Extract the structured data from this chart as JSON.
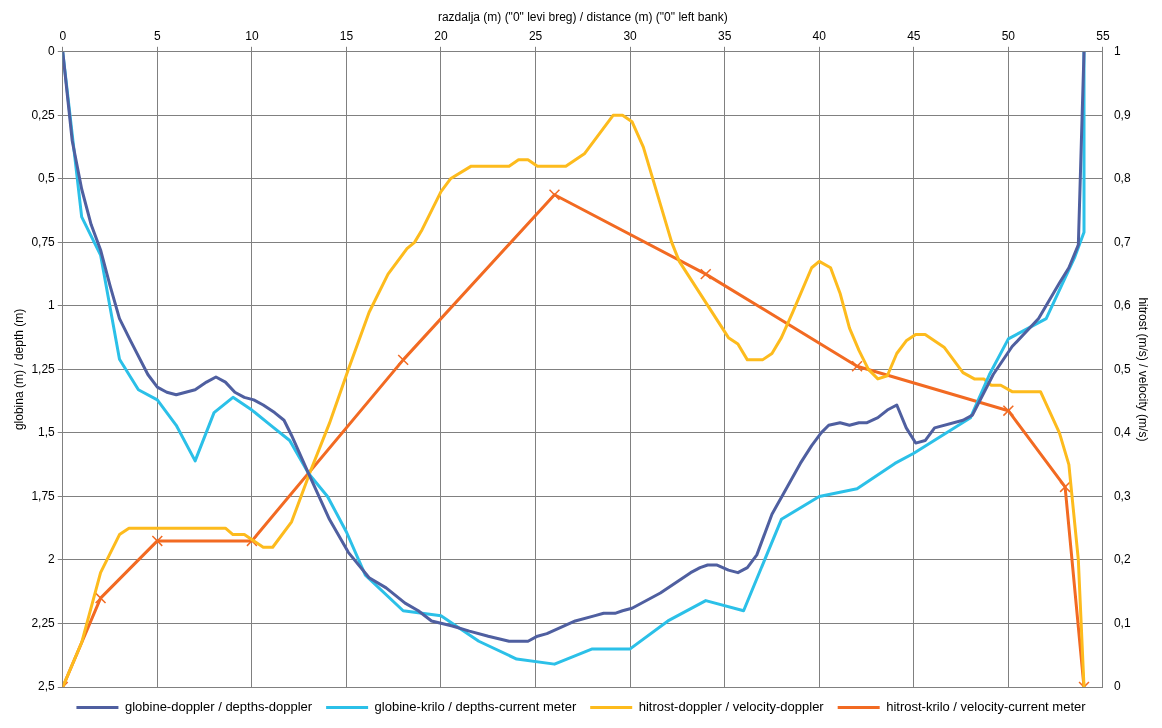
{
  "chart_data": {
    "type": "line",
    "xlabel": "razdalja (m) (\"0\" levi breg) / distance (m) (\"0\" left bank)",
    "ylabel": "globina (m) / depth (m)",
    "y2label": "hitrost (m/s) / velocity (m/s)",
    "xlim": [
      0,
      55
    ],
    "xticks": [
      0,
      5,
      10,
      15,
      20,
      25,
      30,
      35,
      40,
      45,
      50,
      55
    ],
    "ylim": [
      2.5,
      0
    ],
    "yticks": [
      0,
      {
        "value": 0.25,
        "label": "0,25"
      },
      {
        "value": 0.5,
        "label": "0,5"
      },
      {
        "value": 0.75,
        "label": "0,75"
      },
      1,
      {
        "value": 1.25,
        "label": "1,25"
      },
      {
        "value": 1.5,
        "label": "1,5"
      },
      {
        "value": 1.75,
        "label": "1,75"
      },
      2,
      {
        "value": 2.25,
        "label": "2,25"
      },
      {
        "value": 2.5,
        "label": "2,5"
      }
    ],
    "y2lim": [
      0,
      1
    ],
    "y2ticks": [
      0,
      {
        "value": 0.1,
        "label": "0,1"
      },
      {
        "value": 0.2,
        "label": "0,2"
      },
      {
        "value": 0.3,
        "label": "0,3"
      },
      {
        "value": 0.4,
        "label": "0,4"
      },
      {
        "value": 0.5,
        "label": "0,5"
      },
      {
        "value": 0.6,
        "label": "0,6"
      },
      {
        "value": 0.7,
        "label": "0,7"
      },
      {
        "value": 0.8,
        "label": "0,8"
      },
      {
        "value": 0.9,
        "label": "0,9"
      },
      1
    ],
    "grid": true,
    "legend": "bottom",
    "line_style": "solid",
    "series": [
      {
        "name": "globine-doppler / depths-doppler",
        "color": "#4f5fa0",
        "axis": "y",
        "marker": "none",
        "x": [
          0,
          0.5,
          1,
          1.5,
          2,
          2.5,
          3,
          3.6,
          4.5,
          5,
          5.5,
          6,
          7,
          7.6,
          8.1,
          8.6,
          9.1,
          9.6,
          10.1,
          10.6,
          11.2,
          11.7,
          12.1,
          13,
          14.1,
          15.1,
          16.2,
          17.1,
          18.1,
          18.8,
          19.5,
          20.6,
          21.5,
          22.5,
          23.6,
          24.6,
          25.1,
          25.6,
          27.1,
          28.1,
          28.6,
          29.2,
          29.6,
          30.1,
          31.6,
          33.2,
          33.7,
          34.1,
          34.6,
          35.2,
          35.7,
          36.2,
          36.7,
          37,
          37.5,
          38.1,
          39,
          39.6,
          40.1,
          40.5,
          41.1,
          41.6,
          42.1,
          42.5,
          43.1,
          43.6,
          44.1,
          44.6,
          45.1,
          45.6,
          46.1,
          47.6,
          48.1,
          49.2,
          50.2,
          51.6,
          52.7,
          53.2,
          53.7,
          54
        ],
        "values": [
          0,
          0.35,
          0.54,
          0.68,
          0.78,
          0.92,
          1.05,
          1.14,
          1.27,
          1.32,
          1.34,
          1.35,
          1.33,
          1.3,
          1.28,
          1.3,
          1.34,
          1.36,
          1.37,
          1.39,
          1.42,
          1.45,
          1.51,
          1.66,
          1.84,
          1.97,
          2.07,
          2.11,
          2.17,
          2.2,
          2.24,
          2.26,
          2.28,
          2.3,
          2.32,
          2.32,
          2.3,
          2.29,
          2.24,
          2.22,
          2.21,
          2.21,
          2.2,
          2.19,
          2.13,
          2.05,
          2.03,
          2.02,
          2.02,
          2.04,
          2.05,
          2.03,
          1.98,
          1.92,
          1.82,
          1.74,
          1.62,
          1.55,
          1.5,
          1.47,
          1.46,
          1.47,
          1.46,
          1.46,
          1.44,
          1.41,
          1.39,
          1.48,
          1.54,
          1.53,
          1.48,
          1.45,
          1.43,
          1.27,
          1.16,
          1.05,
          0.91,
          0.85,
          0.76,
          0
        ]
      },
      {
        "name": "globine-krilo / depths-current meter",
        "color": "#2bc0e8",
        "axis": "y",
        "marker": "none",
        "x": [
          0,
          1,
          2,
          3,
          4,
          5,
          6,
          7,
          8,
          9,
          10,
          11,
          12,
          13,
          14,
          15,
          16,
          18,
          19,
          20,
          22,
          24,
          26,
          28,
          30,
          32,
          34,
          36,
          38,
          40,
          42,
          44,
          45,
          48,
          49,
          50,
          52,
          53,
          53.5,
          54,
          54
        ],
        "values": [
          0,
          0.65,
          0.8,
          1.21,
          1.33,
          1.37,
          1.47,
          1.61,
          1.42,
          1.36,
          1.41,
          1.47,
          1.53,
          1.66,
          1.75,
          1.89,
          2.06,
          2.2,
          2.21,
          2.22,
          2.32,
          2.39,
          2.41,
          2.35,
          2.35,
          2.24,
          2.16,
          2.2,
          1.84,
          1.75,
          1.72,
          1.62,
          1.58,
          1.44,
          1.27,
          1.13,
          1.05,
          0.89,
          0.81,
          0.71,
          0
        ]
      },
      {
        "name": "hitrost-doppler / velocity-doppler",
        "color": "#fdbb1d",
        "axis": "y2",
        "marker": "none",
        "x": [
          0,
          1,
          2,
          3,
          3.5,
          8.6,
          9,
          9.6,
          10.6,
          11.1,
          12.1,
          13.1,
          14.1,
          15.1,
          16.2,
          17.2,
          18.2,
          18.6,
          19,
          20,
          20.5,
          21.6,
          23.6,
          24.1,
          24.6,
          25.1,
          26.6,
          27.6,
          29.1,
          29.6,
          30.1,
          30.7,
          32.2,
          32.6,
          35.2,
          35.7,
          36.2,
          37,
          37.5,
          38,
          38.6,
          39.6,
          40,
          40.6,
          41.1,
          41.6,
          42.1,
          42.6,
          43.1,
          43.6,
          44.1,
          44.6,
          45.1,
          45.6,
          46.6,
          47.6,
          48.2,
          48.7,
          49.1,
          49.6,
          50.2,
          51.7,
          52.7,
          53.2,
          53.7,
          54
        ],
        "values": [
          0,
          0.07,
          0.18,
          0.24,
          0.25,
          0.25,
          0.24,
          0.24,
          0.22,
          0.22,
          0.26,
          0.34,
          0.415,
          0.5,
          0.59,
          0.65,
          0.69,
          0.7,
          0.72,
          0.78,
          0.8,
          0.82,
          0.82,
          0.83,
          0.83,
          0.82,
          0.82,
          0.84,
          0.9,
          0.9,
          0.89,
          0.85,
          0.7,
          0.67,
          0.55,
          0.54,
          0.515,
          0.515,
          0.525,
          0.55,
          0.59,
          0.66,
          0.67,
          0.66,
          0.62,
          0.565,
          0.53,
          0.5,
          0.485,
          0.49,
          0.525,
          0.545,
          0.555,
          0.555,
          0.535,
          0.495,
          0.485,
          0.485,
          0.475,
          0.475,
          0.465,
          0.465,
          0.4,
          0.35,
          0.2,
          0
        ]
      },
      {
        "name": "hitrost-krilo / velocity-current meter",
        "color": "#f26a22",
        "axis": "y2",
        "marker": "cross",
        "x": [
          0,
          2,
          5,
          10,
          18,
          26,
          34,
          42,
          50,
          53,
          54
        ],
        "values": [
          0,
          0.14,
          0.23,
          0.23,
          0.515,
          0.775,
          0.65,
          0.505,
          0.435,
          0.315,
          0
        ]
      }
    ]
  }
}
